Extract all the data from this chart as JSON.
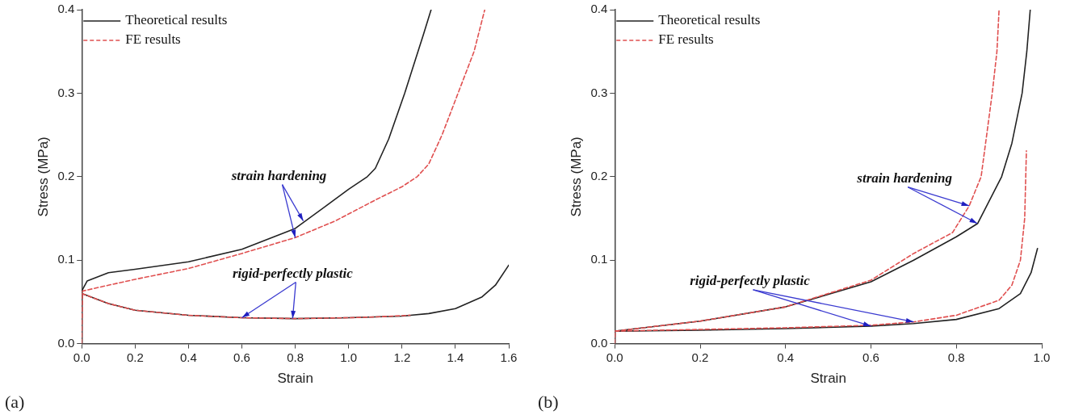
{
  "chart_data": [
    {
      "type": "line",
      "xlabel": "Strain",
      "ylabel": "Stress (MPa)",
      "xlim": [
        0,
        1.6
      ],
      "ylim": [
        0,
        0.4
      ],
      "xticks": [
        {
          "value": 0,
          "label": "0.0"
        },
        {
          "value": 0.2,
          "label": "0.2"
        },
        {
          "value": 0.4,
          "label": "0.4"
        },
        {
          "value": 0.6,
          "label": "0.6"
        },
        {
          "value": 0.8,
          "label": "0.8"
        },
        {
          "value": 1,
          "label": "1.0"
        },
        {
          "value": 1.2,
          "label": "1.2"
        },
        {
          "value": 1.4,
          "label": "1.4"
        },
        {
          "value": 1.6,
          "label": "1.6"
        }
      ],
      "yticks": [
        {
          "value": 0,
          "label": "0.0"
        },
        {
          "value": 0.1,
          "label": "0.1"
        },
        {
          "value": 0.2,
          "label": "0.2"
        },
        {
          "value": 0.3,
          "label": "0.3"
        },
        {
          "value": 0.4,
          "label": "0.4"
        }
      ],
      "grid": false,
      "legend": "top left",
      "marker": "none",
      "annotations": [
        {
          "text": "strain hardening",
          "x": 0.83,
          "y": 0.147
        },
        {
          "text": "rigid-perfectly plastic",
          "x": 0.79,
          "y": 0.03
        },
        "(a)"
      ],
      "series": [
        {
          "name": "Theoretical results",
          "color": "#222222",
          "line_style": "solid",
          "x": [
            0,
            0.02,
            0.1,
            0.2,
            0.4,
            0.6,
            0.8,
            0.92,
            1.0,
            1.07,
            1.1,
            1.15,
            1.21,
            1.25,
            1.28,
            1.309
          ],
          "values": [
            0.063,
            0.075,
            0.085,
            0.089,
            0.098,
            0.113,
            0.138,
            0.166,
            0.185,
            0.2,
            0.21,
            0.245,
            0.3,
            0.34,
            0.37,
            0.4
          ]
        },
        {
          "name": "FE results",
          "color": "#e05050",
          "line_style": "dashed",
          "x": [
            0,
            0.003,
            0.1,
            0.2,
            0.4,
            0.6,
            0.8,
            0.95,
            1.1,
            1.2,
            1.257,
            1.3,
            1.35,
            1.41,
            1.47,
            1.51
          ],
          "values": [
            0,
            0.063,
            0.07,
            0.077,
            0.09,
            0.108,
            0.127,
            0.147,
            0.172,
            0.188,
            0.2,
            0.215,
            0.25,
            0.3,
            0.35,
            0.4
          ]
        },
        {
          "color": "#222222",
          "line_style": "solid",
          "x": [
            0,
            0.1,
            0.2,
            0.4,
            0.6,
            0.8,
            1.0,
            1.2,
            1.3,
            1.4,
            1.5,
            1.55,
            1.6
          ],
          "values": [
            0.06,
            0.048,
            0.04,
            0.034,
            0.031,
            0.03,
            0.031,
            0.033,
            0.036,
            0.042,
            0.056,
            0.07,
            0.094
          ]
        },
        {
          "color": "#e05050",
          "line_style": "dashed",
          "x": [
            0,
            0.1,
            0.2,
            0.4,
            0.6,
            0.8,
            1.0,
            1.1,
            1.23
          ],
          "values": [
            0.06,
            0.048,
            0.04,
            0.034,
            0.031,
            0.03,
            0.031,
            0.032,
            0.034
          ]
        }
      ]
    },
    {
      "type": "line",
      "xlabel": "Strain",
      "ylabel": "Stress (MPa)",
      "xlim": [
        0,
        1
      ],
      "ylim": [
        0,
        0.4
      ],
      "xticks": [
        {
          "value": 0,
          "label": "0.0"
        },
        {
          "value": 0.2,
          "label": "0.2"
        },
        {
          "value": 0.4,
          "label": "0.4"
        },
        {
          "value": 0.6,
          "label": "0.6"
        },
        {
          "value": 0.8,
          "label": "0.8"
        },
        {
          "value": 1,
          "label": "1.0"
        }
      ],
      "yticks": [
        {
          "value": 0,
          "label": "0.0"
        },
        {
          "value": 0.1,
          "label": "0.1"
        },
        {
          "value": 0.2,
          "label": "0.2"
        },
        {
          "value": 0.3,
          "label": "0.3"
        },
        {
          "value": 0.4,
          "label": "0.4"
        }
      ],
      "grid": false,
      "legend": "top left",
      "marker": "none",
      "annotations": [
        {
          "text": "strain hardening",
          "x": 0.849,
          "y": 0.144
        },
        {
          "text": "rigid-perfectly plastic",
          "x": 0.6,
          "y": 0.021
        },
        "(b)"
      ],
      "series": [
        {
          "name": "Theoretical results",
          "color": "#222222",
          "line_style": "solid",
          "x": [
            0,
            0.2,
            0.4,
            0.6,
            0.7,
            0.8,
            0.85,
            0.906,
            0.93,
            0.954,
            0.965,
            0.973
          ],
          "values": [
            0.015,
            0.027,
            0.044,
            0.074,
            0.1,
            0.128,
            0.144,
            0.2,
            0.24,
            0.3,
            0.35,
            0.4
          ]
        },
        {
          "name": "FE results",
          "color": "#e05050",
          "line_style": "dashed",
          "x": [
            0,
            0.001,
            0.2,
            0.4,
            0.6,
            0.7,
            0.791,
            0.83,
            0.858,
            0.884,
            0.895,
            0.9
          ],
          "values": [
            0,
            0.015,
            0.027,
            0.044,
            0.076,
            0.108,
            0.133,
            0.165,
            0.2,
            0.3,
            0.35,
            0.4
          ]
        },
        {
          "color": "#222222",
          "line_style": "solid",
          "x": [
            0,
            0.2,
            0.4,
            0.6,
            0.7,
            0.8,
            0.9,
            0.95,
            0.975,
            0.99
          ],
          "values": [
            0.015,
            0.016,
            0.018,
            0.021,
            0.024,
            0.029,
            0.042,
            0.06,
            0.085,
            0.114
          ]
        },
        {
          "color": "#e05050",
          "line_style": "dashed",
          "x": [
            0,
            0.4,
            0.6,
            0.7,
            0.8,
            0.9,
            0.93,
            0.95,
            0.96,
            0.964
          ],
          "values": [
            0.015,
            0.019,
            0.022,
            0.026,
            0.034,
            0.052,
            0.07,
            0.1,
            0.15,
            0.231
          ]
        }
      ]
    }
  ]
}
